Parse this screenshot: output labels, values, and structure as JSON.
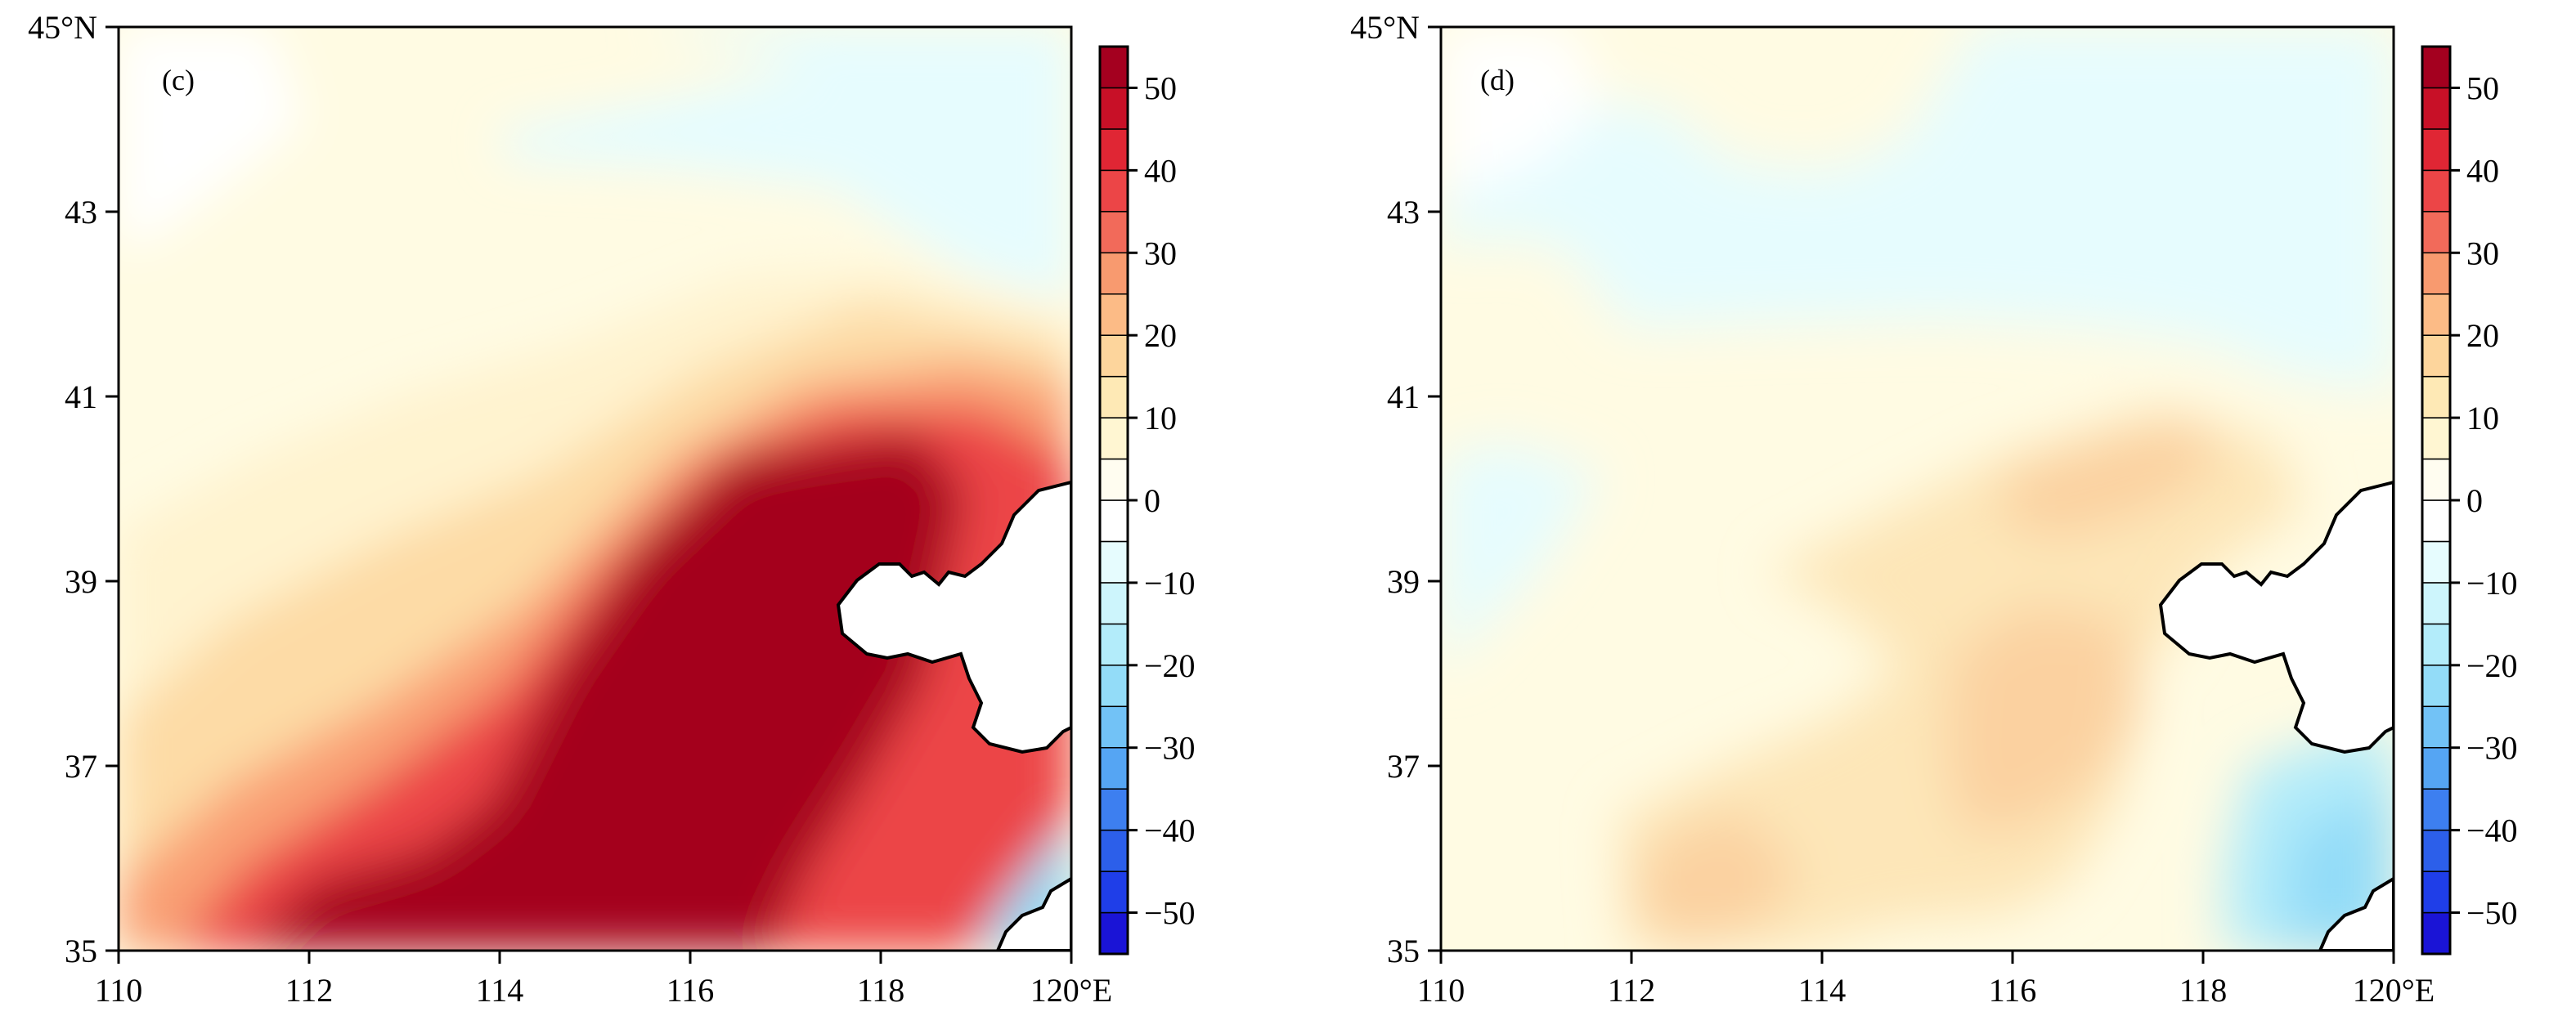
{
  "chart_data": [
    {
      "type": "heatmap",
      "panel_label": "(c)",
      "x_range": [
        110,
        120
      ],
      "y_range": [
        35,
        45
      ],
      "x_ticks": [
        "110",
        "112",
        "114",
        "116",
        "118",
        "120°E"
      ],
      "y_ticks": [
        "35",
        "37",
        "39",
        "41",
        "43",
        "45°N"
      ],
      "pattern": "warm",
      "colorbar": {
        "levels": [
          "-50",
          "-40",
          "-30",
          "-20",
          "-10",
          "0",
          "10",
          "20",
          "30",
          "40",
          "50"
        ],
        "range": [
          -55,
          55
        ]
      }
    },
    {
      "type": "heatmap",
      "panel_label": "(d)",
      "x_range": [
        110,
        120
      ],
      "y_range": [
        35,
        45
      ],
      "x_ticks": [
        "110",
        "112",
        "114",
        "116",
        "118",
        "120°E"
      ],
      "y_ticks": [
        "35",
        "37",
        "39",
        "41",
        "43",
        "45°N"
      ],
      "pattern": "mild",
      "colorbar": {
        "levels": [
          "-50",
          "-40",
          "-30",
          "-20",
          "-10",
          "0",
          "10",
          "20",
          "30",
          "40",
          "50"
        ],
        "range": [
          -55,
          55
        ]
      }
    }
  ],
  "colors": {
    "palette": [
      "#1a14d6",
      "#1f3ee8",
      "#2c5fea",
      "#3d7ff0",
      "#55a5f3",
      "#72c2f6",
      "#93dcf8",
      "#b3ecfa",
      "#cdf5fc",
      "#e6fcfe",
      "#ffffff",
      "#fffdf0",
      "#fff6d2",
      "#fee9b5",
      "#fdd59c",
      "#fcbb86",
      "#f89a6f",
      "#f26a5a",
      "#ec4547",
      "#e02634",
      "#c81027",
      "#a4001f"
    ]
  }
}
